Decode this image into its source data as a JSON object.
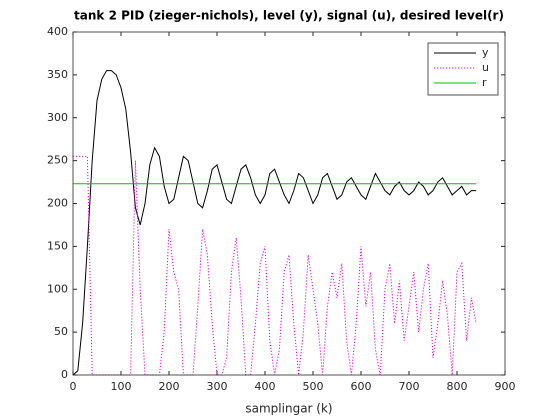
{
  "chart_data": {
    "type": "line",
    "title": "tank 2 PID (zieger-nichols), level (y), signal (u), desired level(r)",
    "x_label": "samplingar (k)",
    "x": [
      0,
      10,
      20,
      30,
      40,
      50,
      60,
      70,
      80,
      90,
      100,
      110,
      120,
      130,
      140,
      150,
      160,
      170,
      180,
      190,
      200,
      210,
      220,
      230,
      240,
      250,
      260,
      270,
      280,
      290,
      300,
      310,
      320,
      330,
      340,
      350,
      360,
      370,
      380,
      390,
      400,
      410,
      420,
      430,
      440,
      450,
      460,
      470,
      480,
      490,
      500,
      510,
      520,
      530,
      540,
      550,
      560,
      570,
      580,
      590,
      600,
      610,
      620,
      630,
      640,
      650,
      660,
      670,
      680,
      690,
      700,
      710,
      720,
      730,
      740,
      750,
      760,
      770,
      780,
      790,
      800,
      810,
      820,
      830,
      840
    ],
    "series": [
      {
        "name": "y",
        "color": "#000000",
        "linestyle": "solid",
        "values": [
          0,
          5,
          60,
          150,
          250,
          320,
          345,
          355,
          355,
          350,
          335,
          310,
          260,
          195,
          175,
          200,
          245,
          265,
          255,
          220,
          200,
          205,
          230,
          255,
          250,
          225,
          200,
          195,
          215,
          240,
          245,
          225,
          205,
          200,
          220,
          240,
          245,
          230,
          210,
          200,
          210,
          235,
          240,
          225,
          210,
          200,
          215,
          235,
          230,
          215,
          200,
          210,
          230,
          235,
          220,
          205,
          210,
          225,
          230,
          220,
          210,
          205,
          220,
          235,
          225,
          215,
          210,
          220,
          225,
          215,
          210,
          215,
          225,
          220,
          210,
          215,
          225,
          230,
          220,
          210,
          215,
          220,
          210,
          215,
          215
        ]
      },
      {
        "name": "u",
        "color": "#e000e0",
        "linestyle": "dotted",
        "values": [
          255,
          255,
          255,
          255,
          0,
          0,
          0,
          0,
          0,
          0,
          0,
          0,
          0,
          250,
          100,
          0,
          0,
          0,
          0,
          50,
          170,
          120,
          100,
          0,
          0,
          0,
          80,
          170,
          140,
          60,
          0,
          0,
          20,
          120,
          160,
          90,
          0,
          0,
          60,
          130,
          150,
          40,
          0,
          30,
          120,
          140,
          60,
          0,
          50,
          140,
          100,
          60,
          0,
          80,
          120,
          90,
          130,
          40,
          0,
          60,
          150,
          80,
          120,
          30,
          0,
          100,
          130,
          60,
          110,
          40,
          80,
          120,
          50,
          100,
          130,
          20,
          60,
          110,
          70,
          0,
          120,
          130,
          40,
          90,
          60
        ]
      },
      {
        "name": "r",
        "color": "#00c000",
        "linestyle": "solid",
        "values": [
          223,
          223,
          223,
          223,
          223,
          223,
          223,
          223,
          223,
          223,
          223,
          223,
          223,
          223,
          223,
          223,
          223,
          223,
          223,
          223,
          223,
          223,
          223,
          223,
          223,
          223,
          223,
          223,
          223,
          223,
          223,
          223,
          223,
          223,
          223,
          223,
          223,
          223,
          223,
          223,
          223,
          223,
          223,
          223,
          223,
          223,
          223,
          223,
          223,
          223,
          223,
          223,
          223,
          223,
          223,
          223,
          223,
          223,
          223,
          223,
          223,
          223,
          223,
          223,
          223,
          223,
          223,
          223,
          223,
          223,
          223,
          223,
          223,
          223,
          223,
          223,
          223,
          223,
          223,
          223,
          223,
          223,
          223,
          223,
          223
        ]
      }
    ],
    "xlim": [
      0,
      900
    ],
    "xticks": [
      0,
      100,
      200,
      300,
      400,
      500,
      600,
      700,
      800,
      900
    ],
    "ylim": [
      0,
      400
    ],
    "yticks": [
      0,
      50,
      100,
      150,
      200,
      250,
      300,
      350,
      400
    ],
    "grid": false,
    "legend": "northeast"
  }
}
